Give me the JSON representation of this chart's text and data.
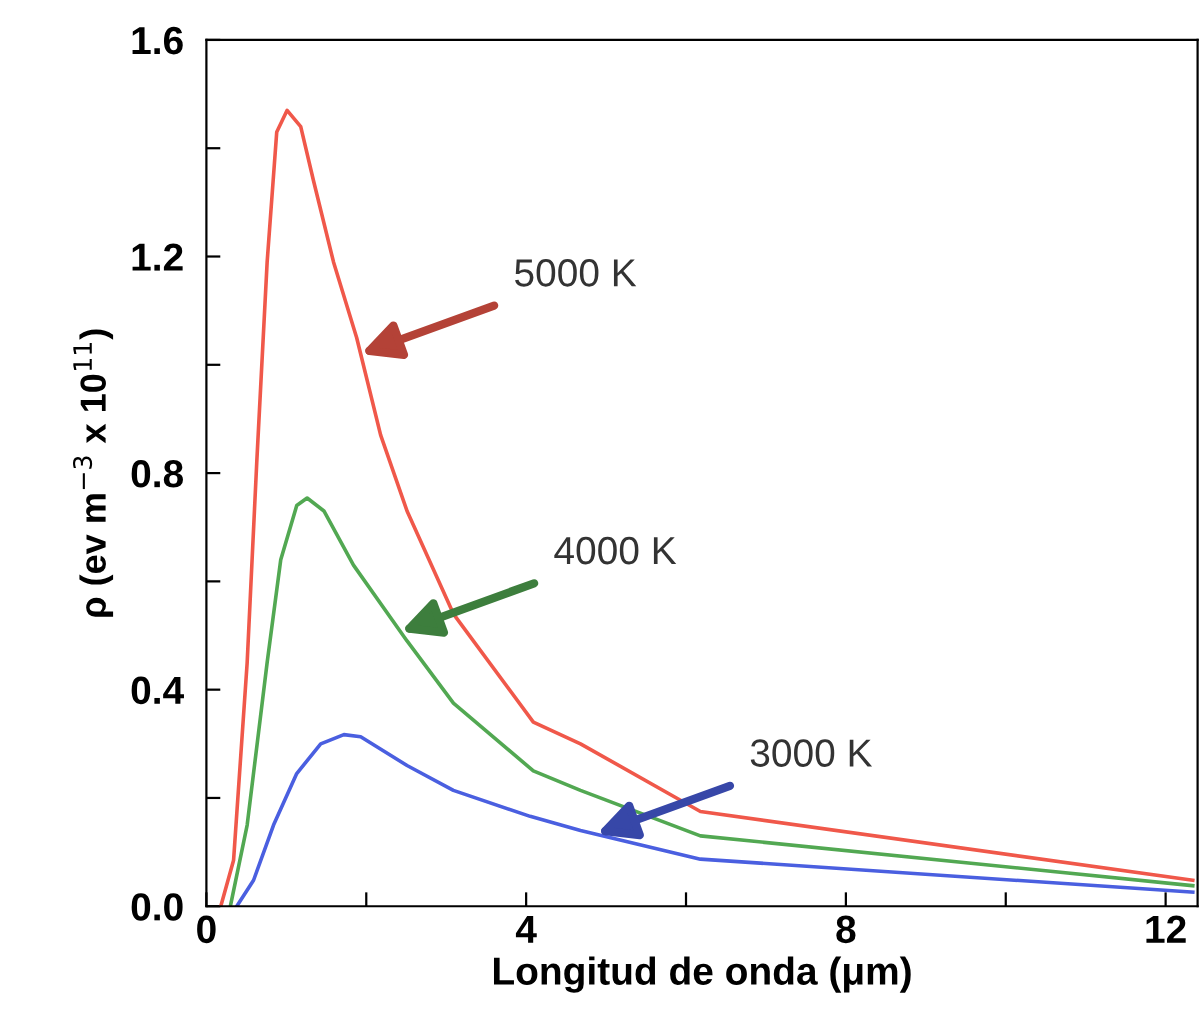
{
  "chart_data": {
    "type": "line",
    "xlabel": "Longitud de onda (μm)",
    "ylabel": "ρ (ev m$^{−3}$ x 10$^{11}$)",
    "xlim": [
      0,
      12.4
    ],
    "ylim": [
      0,
      1.6
    ],
    "xticks": [
      0,
      {
        "value": 2,
        "label": null
      },
      4,
      {
        "value": 6,
        "label": null
      },
      8,
      {
        "value": 10,
        "label": null
      },
      12
    ],
    "yticks": [
      {
        "value": 0,
        "label": "0.0"
      },
      {
        "value": 0.2,
        "label": null
      },
      0.4,
      {
        "value": 0.6,
        "label": null
      },
      0.8,
      {
        "value": 1.0,
        "label": null
      },
      1.2,
      {
        "value": 1.4,
        "label": null
      },
      1.6
    ],
    "grid": false,
    "marker": "none",
    "line_style": "solid",
    "series": [
      {
        "color": "#f0584a",
        "x": [
          0.18,
          0.34,
          0.51,
          0.63,
          0.76,
          0.88,
          1.01,
          1.18,
          1.34,
          1.59,
          1.88,
          2.18,
          2.51,
          3.09,
          4.09,
          4.68,
          6.18,
          12.34
        ],
        "values": [
          0,
          0.085,
          0.45,
          0.82,
          1.19,
          1.43,
          1.47,
          1.44,
          1.34,
          1.19,
          1.05,
          0.87,
          0.73,
          0.54,
          0.34,
          0.3,
          0.175,
          0.048
        ]
      },
      {
        "color": "#52a852",
        "x": [
          0.3,
          0.51,
          0.76,
          0.93,
          1.13,
          1.26,
          1.47,
          1.84,
          2.51,
          3.09,
          4.09,
          4.68,
          6.18,
          12.34
        ],
        "values": [
          0,
          0.15,
          0.45,
          0.64,
          0.74,
          0.754,
          0.73,
          0.63,
          0.49,
          0.375,
          0.25,
          0.214,
          0.13,
          0.038
        ]
      },
      {
        "color": "#4a5fe0",
        "x": [
          0.38,
          0.59,
          0.84,
          1.13,
          1.43,
          1.72,
          1.93,
          2.51,
          3.09,
          4.05,
          4.68,
          6.18,
          12.34
        ],
        "values": [
          0,
          0.048,
          0.15,
          0.245,
          0.3,
          0.317,
          0.313,
          0.26,
          0.214,
          0.166,
          0.14,
          0.087,
          0.026
        ]
      }
    ],
    "annotations": [
      {
        "text": "5000 K",
        "x": 1.93,
        "y": 1.02
      },
      {
        "text": "4000 K",
        "x": 2.43,
        "y": 0.507
      },
      {
        "text": "3000 K",
        "x": 4.88,
        "y": 0.133
      }
    ]
  }
}
